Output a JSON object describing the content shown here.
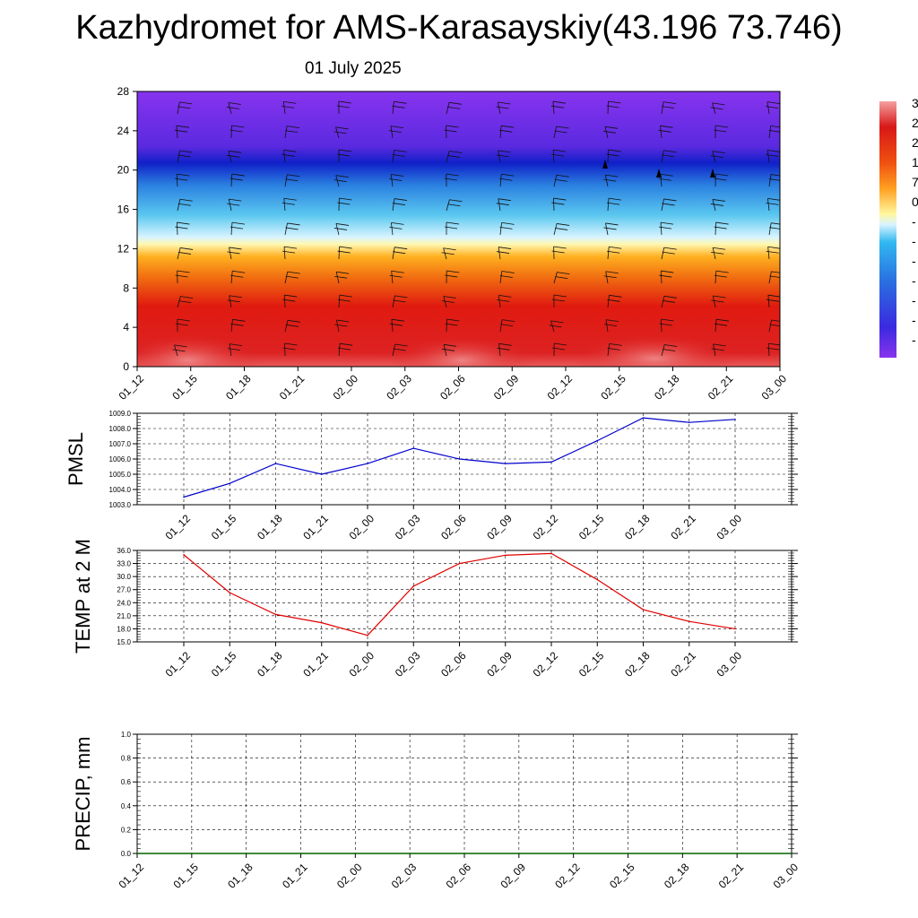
{
  "title": "Kazhydromet for AMS-Karasayskiy(43.196 73.746)",
  "subtitle": "01 July 2025",
  "colors": {
    "pmsl_line": "#0000cc",
    "temp_line": "#e00000",
    "precip_line": "#006400",
    "grid": "#000000"
  },
  "chart_data": [
    {
      "type": "heatmap",
      "ylim": [
        0,
        28
      ],
      "yticks": [
        "0",
        "4",
        "8",
        "12",
        "16",
        "20",
        "24",
        "28"
      ],
      "x": [
        "01_12",
        "01_15",
        "01_18",
        "01_21",
        "02_00",
        "02_03",
        "02_06",
        "02_09",
        "02_12",
        "02_15",
        "02_18",
        "02_21",
        "03_00"
      ],
      "legend": "right",
      "colorbar_labels": [
        "3",
        "2",
        "2",
        "1",
        "7",
        "0",
        "-",
        "-",
        "-",
        "-",
        "-",
        "-",
        "-"
      ],
      "grid": false
    },
    {
      "type": "line",
      "ylabel": "PMSL",
      "ylim": [
        1003.0,
        1009.0
      ],
      "yticks": [
        "1003.0",
        "1004.0",
        "1005.0",
        "1006.0",
        "1007.0",
        "1008.0",
        "1009.0"
      ],
      "x": [
        "01_12",
        "01_15",
        "01_18",
        "01_21",
        "02_00",
        "02_03",
        "02_06",
        "02_09",
        "02_12",
        "02_15",
        "02_18",
        "02_21",
        "03_00"
      ],
      "values": [
        1003.5,
        1004.4,
        1005.7,
        1005.0,
        1005.7,
        1006.7,
        1006.0,
        1005.7,
        1005.8,
        1007.2,
        1008.7,
        1008.4,
        1008.6
      ],
      "grid": true
    },
    {
      "type": "line",
      "ylabel": "TEMP at 2 M",
      "ylim": [
        15.0,
        36.0
      ],
      "yticks": [
        "15.0",
        "18.0",
        "21.0",
        "24.0",
        "27.0",
        "30.0",
        "33.0",
        "36.0"
      ],
      "x": [
        "01_12",
        "01_15",
        "01_18",
        "01_21",
        "02_00",
        "02_03",
        "02_06",
        "02_09",
        "02_12",
        "02_15",
        "02_18",
        "02_21",
        "03_00"
      ],
      "values": [
        35.0,
        26.3,
        21.3,
        19.4,
        16.5,
        27.8,
        33.0,
        34.9,
        35.3,
        29.3,
        22.4,
        19.7,
        18.0
      ],
      "grid": true
    },
    {
      "type": "line",
      "ylabel": "PRECIP, mm",
      "ylim": [
        0.0,
        1.0
      ],
      "yticks": [
        "0.0",
        "0.2",
        "0.4",
        "0.6",
        "0.8",
        "1.0"
      ],
      "x": [
        "01_12",
        "01_15",
        "01_18",
        "01_21",
        "02_00",
        "02_03",
        "02_06",
        "02_09",
        "02_12",
        "02_15",
        "02_18",
        "02_21",
        "03_00"
      ],
      "values": [
        0,
        0,
        0,
        0,
        0,
        0,
        0,
        0,
        0,
        0,
        0,
        0,
        0
      ],
      "grid": true
    }
  ]
}
